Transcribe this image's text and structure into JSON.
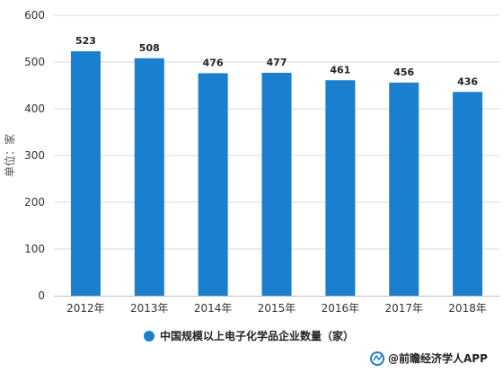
{
  "chart_data": {
    "type": "bar",
    "title": "",
    "categories": [
      "2012年",
      "2013年",
      "2014年",
      "2015年",
      "2016年",
      "2017年",
      "2018年"
    ],
    "series": [
      {
        "name": "中国规模以上电子化学品企业数量（家）",
        "values": [
          523,
          508,
          476,
          477,
          461,
          456,
          436
        ],
        "color": "#1a7fce"
      }
    ],
    "ylabel": "单位：家",
    "ylim": [
      0,
      600
    ],
    "yticks": [
      0,
      100,
      200,
      300,
      400,
      500,
      600
    ],
    "grid": true,
    "legend": "bottom-center",
    "data_labels": true
  },
  "source": {
    "text": "@前瞻经济学人APP"
  },
  "colors": {
    "bar": "#1a7fce",
    "grid": "#d9d9d9",
    "axis": "#bfbfbf"
  }
}
